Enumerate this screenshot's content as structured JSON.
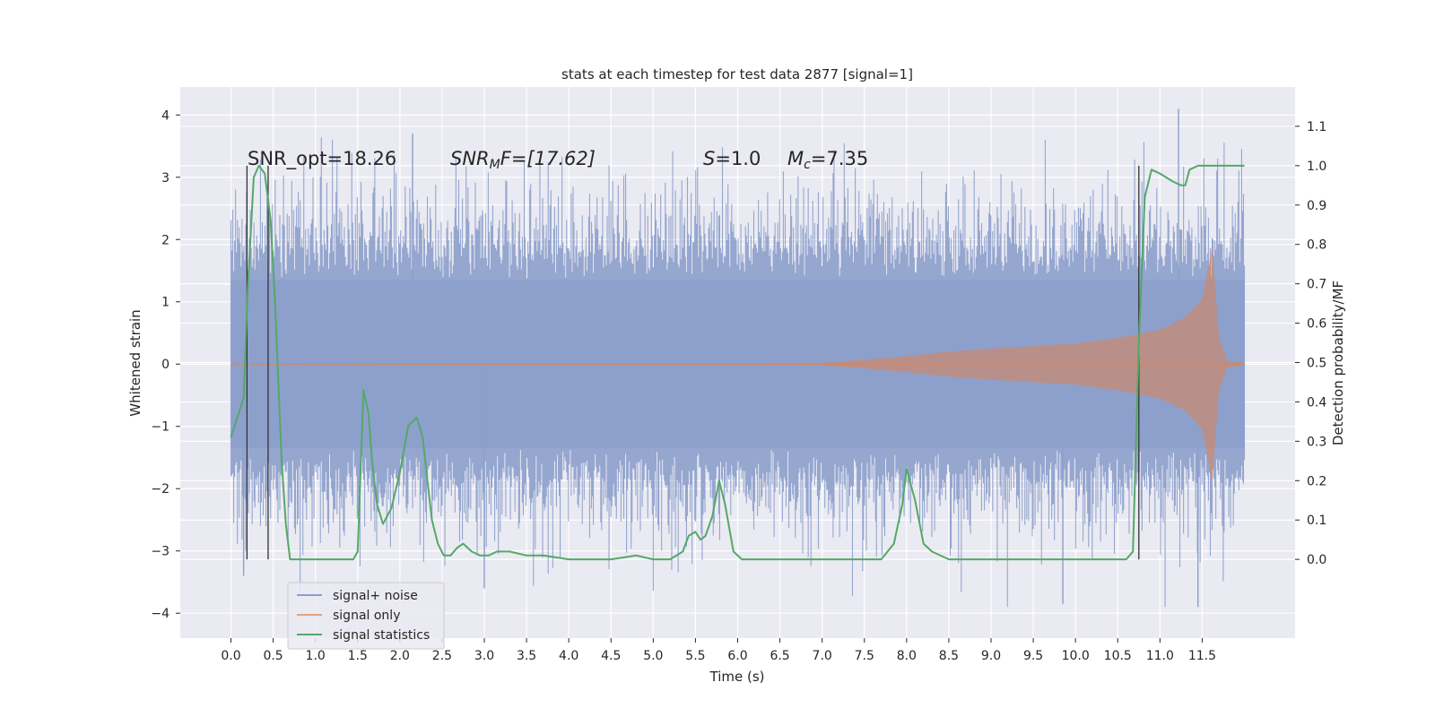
{
  "chart_data": {
    "type": "line",
    "title": "stats at each timestep for test data 2877 [signal=1]",
    "xlabel": "Time (s)",
    "ylabel": "Whitened strain",
    "ylabel_right": "Detection probability/MF",
    "xlim": [
      -0.6,
      12.6
    ],
    "ylim": [
      -4.4,
      4.45
    ],
    "ylim_right": [
      -0.2,
      1.2
    ],
    "x_ticks": [
      "0.0",
      "0.5",
      "1.0",
      "1.5",
      "2.0",
      "2.5",
      "3.0",
      "3.5",
      "4.0",
      "4.5",
      "5.0",
      "5.5",
      "6.0",
      "6.5",
      "7.0",
      "7.5",
      "8.0",
      "8.5",
      "9.0",
      "9.5",
      "10.0",
      "10.5",
      "11.0",
      "11.5"
    ],
    "y_ticks": [
      "4",
      "3",
      "2",
      "1",
      "0",
      "−1",
      "−2",
      "−3",
      "−4"
    ],
    "y_right_ticks": [
      "1.1",
      "1.0",
      "0.9",
      "0.8",
      "0.7",
      "0.6",
      "0.5",
      "0.4",
      "0.3",
      "0.2",
      "0.1",
      "0.0"
    ],
    "grid": true,
    "legend_position": "lower-left",
    "annotations": {
      "snr_opt": "SNR_opt=18.26",
      "snr_mf_prefix": "SNR",
      "snr_mf_sub": "M",
      "snr_mf_suffix": "F=[17.62]",
      "s_prefix": "S",
      "s_value": "=1.0",
      "mc_prefix": "M",
      "mc_sub": "c",
      "mc_value": "=7.35"
    },
    "vertical_markers_x": [
      0.19,
      0.44,
      10.75
    ],
    "series": [
      {
        "name": "signal+ noise",
        "color": "#8c9fcb",
        "envelope": {
          "t_start": 0.0,
          "t_end": 12.0,
          "core_amplitude": 1.35,
          "typical_peak": 2.6,
          "max_peak": 4.1,
          "min_trough": -3.9
        }
      },
      {
        "name": "signal only",
        "color": "#dd8452",
        "chirp_envelope": {
          "t": [
            0.0,
            7.0,
            7.5,
            8.0,
            8.5,
            9.0,
            9.5,
            10.0,
            10.5,
            11.0,
            11.3,
            11.5,
            11.62,
            11.7,
            11.8,
            12.0
          ],
          "amplitude": [
            0.0,
            0.02,
            0.07,
            0.13,
            0.2,
            0.25,
            0.29,
            0.33,
            0.42,
            0.55,
            0.75,
            1.05,
            1.9,
            0.4,
            0.05,
            0.02
          ]
        }
      },
      {
        "name": "signal statistics",
        "color": "#55a868",
        "x": [
          0.0,
          0.15,
          0.2,
          0.27,
          0.33,
          0.4,
          0.47,
          0.52,
          0.6,
          0.65,
          0.7,
          1.0,
          1.3,
          1.45,
          1.5,
          1.57,
          1.63,
          1.67,
          1.73,
          1.8,
          1.9,
          2.0,
          2.1,
          2.2,
          2.27,
          2.32,
          2.38,
          2.45,
          2.52,
          2.6,
          2.68,
          2.75,
          2.85,
          2.95,
          3.05,
          3.15,
          3.3,
          3.5,
          3.7,
          4.0,
          4.5,
          4.8,
          5.0,
          5.2,
          5.35,
          5.42,
          5.5,
          5.56,
          5.62,
          5.7,
          5.78,
          5.85,
          5.95,
          6.05,
          6.3,
          7.0,
          7.3,
          7.5,
          7.7,
          7.85,
          7.95,
          8.0,
          8.1,
          8.2,
          8.3,
          8.5,
          8.7,
          9.0,
          10.0,
          10.6,
          10.68,
          10.75,
          10.82,
          10.9,
          11.0,
          11.15,
          11.25,
          11.3,
          11.35,
          11.45,
          11.6,
          12.0
        ],
        "y": [
          0.31,
          0.41,
          0.69,
          0.97,
          1.0,
          0.98,
          0.86,
          0.66,
          0.25,
          0.09,
          0.0,
          0.0,
          0.0,
          0.0,
          0.02,
          0.43,
          0.37,
          0.25,
          0.14,
          0.09,
          0.13,
          0.22,
          0.34,
          0.36,
          0.31,
          0.21,
          0.1,
          0.04,
          0.01,
          0.01,
          0.03,
          0.04,
          0.02,
          0.01,
          0.01,
          0.02,
          0.02,
          0.01,
          0.01,
          0.0,
          0.0,
          0.01,
          0.0,
          0.0,
          0.02,
          0.06,
          0.07,
          0.05,
          0.06,
          0.11,
          0.2,
          0.14,
          0.02,
          0.0,
          0.0,
          0.0,
          0.0,
          0.0,
          0.0,
          0.04,
          0.14,
          0.23,
          0.15,
          0.04,
          0.02,
          0.0,
          0.0,
          0.0,
          0.0,
          0.0,
          0.02,
          0.55,
          0.92,
          0.99,
          0.98,
          0.96,
          0.95,
          0.95,
          0.99,
          1.0,
          1.0,
          1.0
        ]
      }
    ]
  },
  "legend": {
    "items": [
      {
        "label": "signal+ noise",
        "color": "#8c9fcb"
      },
      {
        "label": "signal only",
        "color": "#dd8452"
      },
      {
        "label": "signal statistics",
        "color": "#55a868"
      }
    ]
  }
}
